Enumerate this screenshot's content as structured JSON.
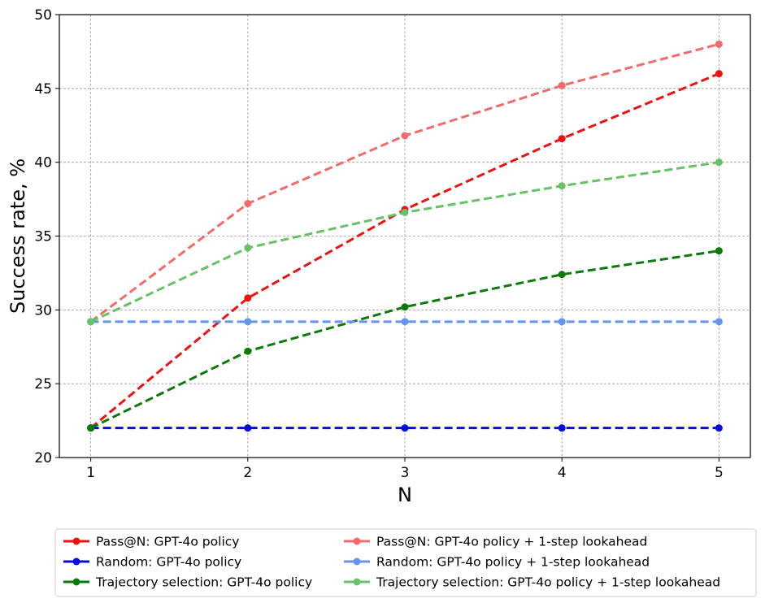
{
  "chart_data": {
    "type": "line",
    "title": "",
    "xlabel": "N",
    "ylabel": "Success rate, %",
    "x": [
      1,
      2,
      3,
      4,
      5
    ],
    "xticks": [
      "1",
      "2",
      "3",
      "4",
      "5"
    ],
    "yticks": [
      "20",
      "25",
      "30",
      "35",
      "40",
      "45",
      "50"
    ],
    "xlim": [
      0.8,
      5.2
    ],
    "ylim": [
      20,
      50
    ],
    "grid": true,
    "legend_position": "bottom-center",
    "series": [
      {
        "name": "Pass@N: GPT-4o policy",
        "color": "#ee1111",
        "dash": "dashed",
        "values": [
          22.0,
          30.8,
          36.8,
          41.6,
          46.0
        ]
      },
      {
        "name": "Random: GPT-4o policy",
        "color": "#0a0adc",
        "dash": "dashed",
        "values": [
          22.0,
          22.0,
          22.0,
          22.0,
          22.0
        ]
      },
      {
        "name": "Trajectory selection: GPT-4o policy",
        "color": "#0a7a0a",
        "dash": "dashed",
        "values": [
          22.0,
          27.2,
          30.2,
          32.4,
          34.0
        ]
      },
      {
        "name": "Pass@N: GPT-4o policy + 1-step lookahead",
        "color": "#f26a6a",
        "dash": "dashed",
        "values": [
          29.2,
          37.2,
          41.8,
          45.2,
          48.0
        ]
      },
      {
        "name": "Random: GPT-4o policy + 1-step lookahead",
        "color": "#6495ed",
        "dash": "dashed",
        "values": [
          29.2,
          29.2,
          29.2,
          29.2,
          29.2
        ]
      },
      {
        "name": "Trajectory selection: GPT-4o policy + 1-step lookahead",
        "color": "#66c266",
        "dash": "dashed",
        "values": [
          29.2,
          34.2,
          36.6,
          38.4,
          40.0
        ]
      }
    ]
  }
}
